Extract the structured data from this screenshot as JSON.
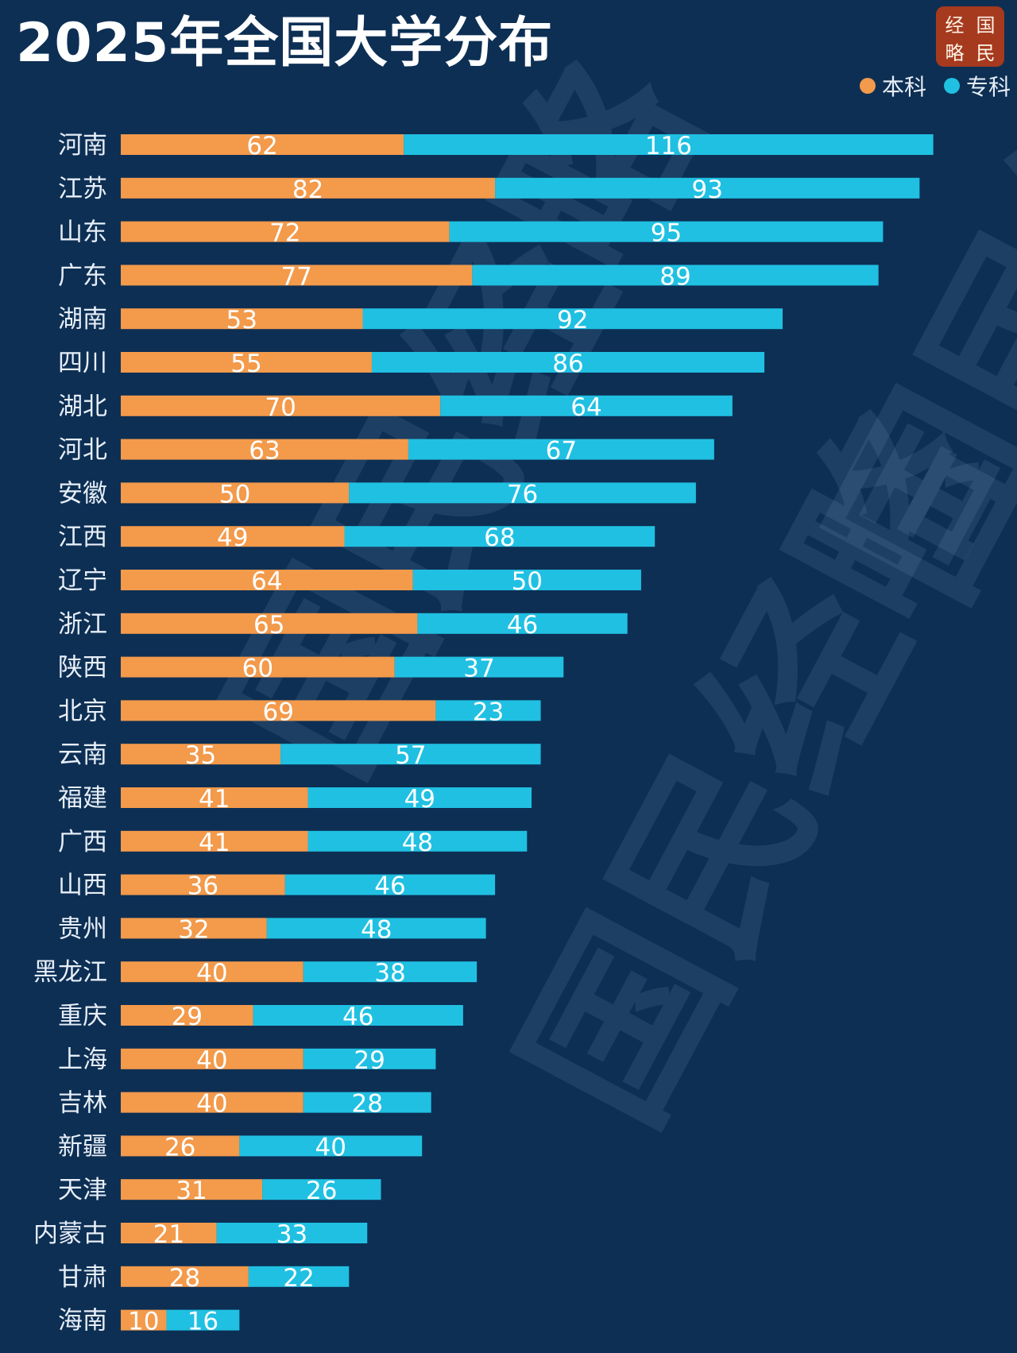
{
  "title": "2025年全国大学分布",
  "seal": {
    "chars": [
      "经",
      "国",
      "略",
      "民"
    ]
  },
  "watermark": [
    "国民经略",
    "国民经略",
    "国民经略"
  ],
  "colors": {
    "background": "#0d2f54",
    "undergrad": "#f39a4b",
    "junior": "#20c0e2",
    "text": "#e7eef7"
  },
  "legend": [
    {
      "label": "本科",
      "color": "#f39a4b"
    },
    {
      "label": "专科",
      "color": "#20c0e2"
    }
  ],
  "chart_data": {
    "type": "bar",
    "orientation": "horizontal",
    "stacked": true,
    "title": "2025年全国大学分布",
    "legend_position": "top-right",
    "grid": false,
    "categories": [
      "河南",
      "江苏",
      "山东",
      "广东",
      "湖南",
      "四川",
      "湖北",
      "河北",
      "安徽",
      "江西",
      "辽宁",
      "浙江",
      "陕西",
      "北京",
      "云南",
      "福建",
      "广西",
      "山西",
      "贵州",
      "黑龙江",
      "重庆",
      "上海",
      "吉林",
      "新疆",
      "天津",
      "内蒙古",
      "甘肃",
      "海南"
    ],
    "series": [
      {
        "name": "本科",
        "values": [
          62,
          82,
          72,
          77,
          53,
          55,
          70,
          63,
          50,
          49,
          64,
          65,
          60,
          69,
          35,
          41,
          41,
          36,
          32,
          40,
          29,
          40,
          40,
          26,
          31,
          21,
          28,
          10
        ]
      },
      {
        "name": "专科",
        "values": [
          116,
          93,
          95,
          89,
          92,
          86,
          64,
          67,
          76,
          68,
          50,
          46,
          37,
          23,
          57,
          49,
          48,
          46,
          48,
          38,
          46,
          29,
          28,
          40,
          26,
          33,
          22,
          16
        ]
      }
    ]
  }
}
